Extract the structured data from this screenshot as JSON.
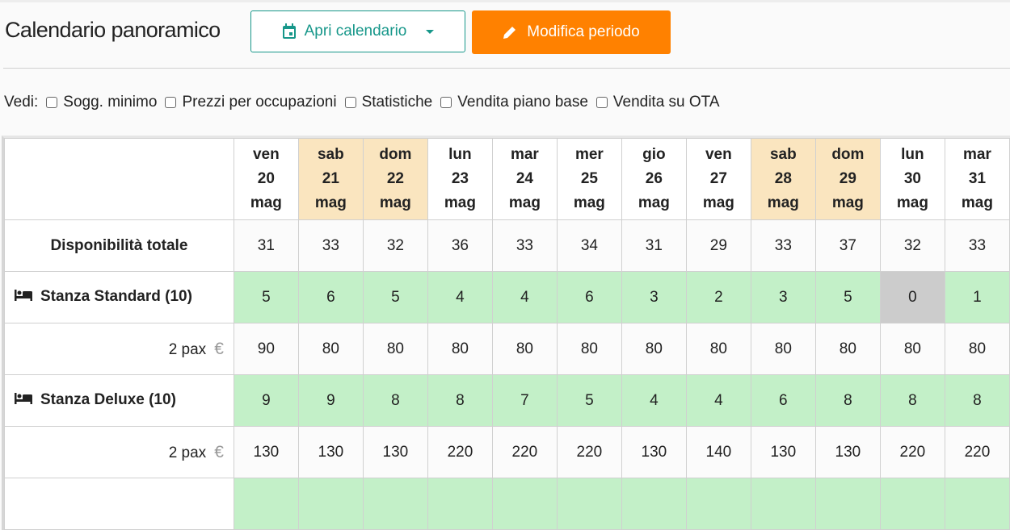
{
  "header": {
    "title": "Calendario panoramico",
    "open_calendar": "Apri calendario",
    "edit_period": "Modifica periodo",
    "accent": "#17978a",
    "edit_color": "#ff8100"
  },
  "filters": {
    "label": "Vedi:",
    "options": [
      {
        "label": "Sogg. minimo",
        "checked": false
      },
      {
        "label": "Prezzi per occupazioni",
        "checked": false
      },
      {
        "label": "Statistiche",
        "checked": false
      },
      {
        "label": "Vendita piano base",
        "checked": false
      },
      {
        "label": "Vendita su OTA",
        "checked": false
      }
    ]
  },
  "table": {
    "days": [
      {
        "dow": "ven",
        "day": "20",
        "month": "mag",
        "weekend": false
      },
      {
        "dow": "sab",
        "day": "21",
        "month": "mag",
        "weekend": true
      },
      {
        "dow": "dom",
        "day": "22",
        "month": "mag",
        "weekend": true
      },
      {
        "dow": "lun",
        "day": "23",
        "month": "mag",
        "weekend": false
      },
      {
        "dow": "mar",
        "day": "24",
        "month": "mag",
        "weekend": false
      },
      {
        "dow": "mer",
        "day": "25",
        "month": "mag",
        "weekend": false
      },
      {
        "dow": "gio",
        "day": "26",
        "month": "mag",
        "weekend": false
      },
      {
        "dow": "ven",
        "day": "27",
        "month": "mag",
        "weekend": false
      },
      {
        "dow": "sab",
        "day": "28",
        "month": "mag",
        "weekend": true
      },
      {
        "dow": "dom",
        "day": "29",
        "month": "mag",
        "weekend": true
      },
      {
        "dow": "lun",
        "day": "30",
        "month": "mag",
        "weekend": false
      },
      {
        "dow": "mar",
        "day": "31",
        "month": "mag",
        "weekend": false
      }
    ],
    "total": {
      "label": "Disponibilità totale",
      "values": [
        "31",
        "33",
        "32",
        "36",
        "33",
        "34",
        "31",
        "29",
        "33",
        "37",
        "32",
        "33"
      ]
    },
    "rooms": [
      {
        "name": "Stanza Standard (10)",
        "availability": [
          "5",
          "6",
          "5",
          "4",
          "4",
          "6",
          "3",
          "2",
          "3",
          "5",
          "0",
          "1"
        ],
        "price_label": "2 pax",
        "prices": [
          "90",
          "80",
          "80",
          "80",
          "80",
          "80",
          "80",
          "80",
          "80",
          "80",
          "80",
          "80"
        ]
      },
      {
        "name": "Stanza Deluxe (10)",
        "availability": [
          "9",
          "9",
          "8",
          "8",
          "7",
          "5",
          "4",
          "4",
          "6",
          "8",
          "8",
          "8"
        ],
        "price_label": "2 pax",
        "prices": [
          "130",
          "130",
          "130",
          "220",
          "220",
          "220",
          "130",
          "140",
          "130",
          "130",
          "220",
          "220"
        ]
      }
    ],
    "colors": {
      "weekend": "#fae5bf",
      "available": "#c3f0c8",
      "sold_out": "#cccccc"
    }
  }
}
